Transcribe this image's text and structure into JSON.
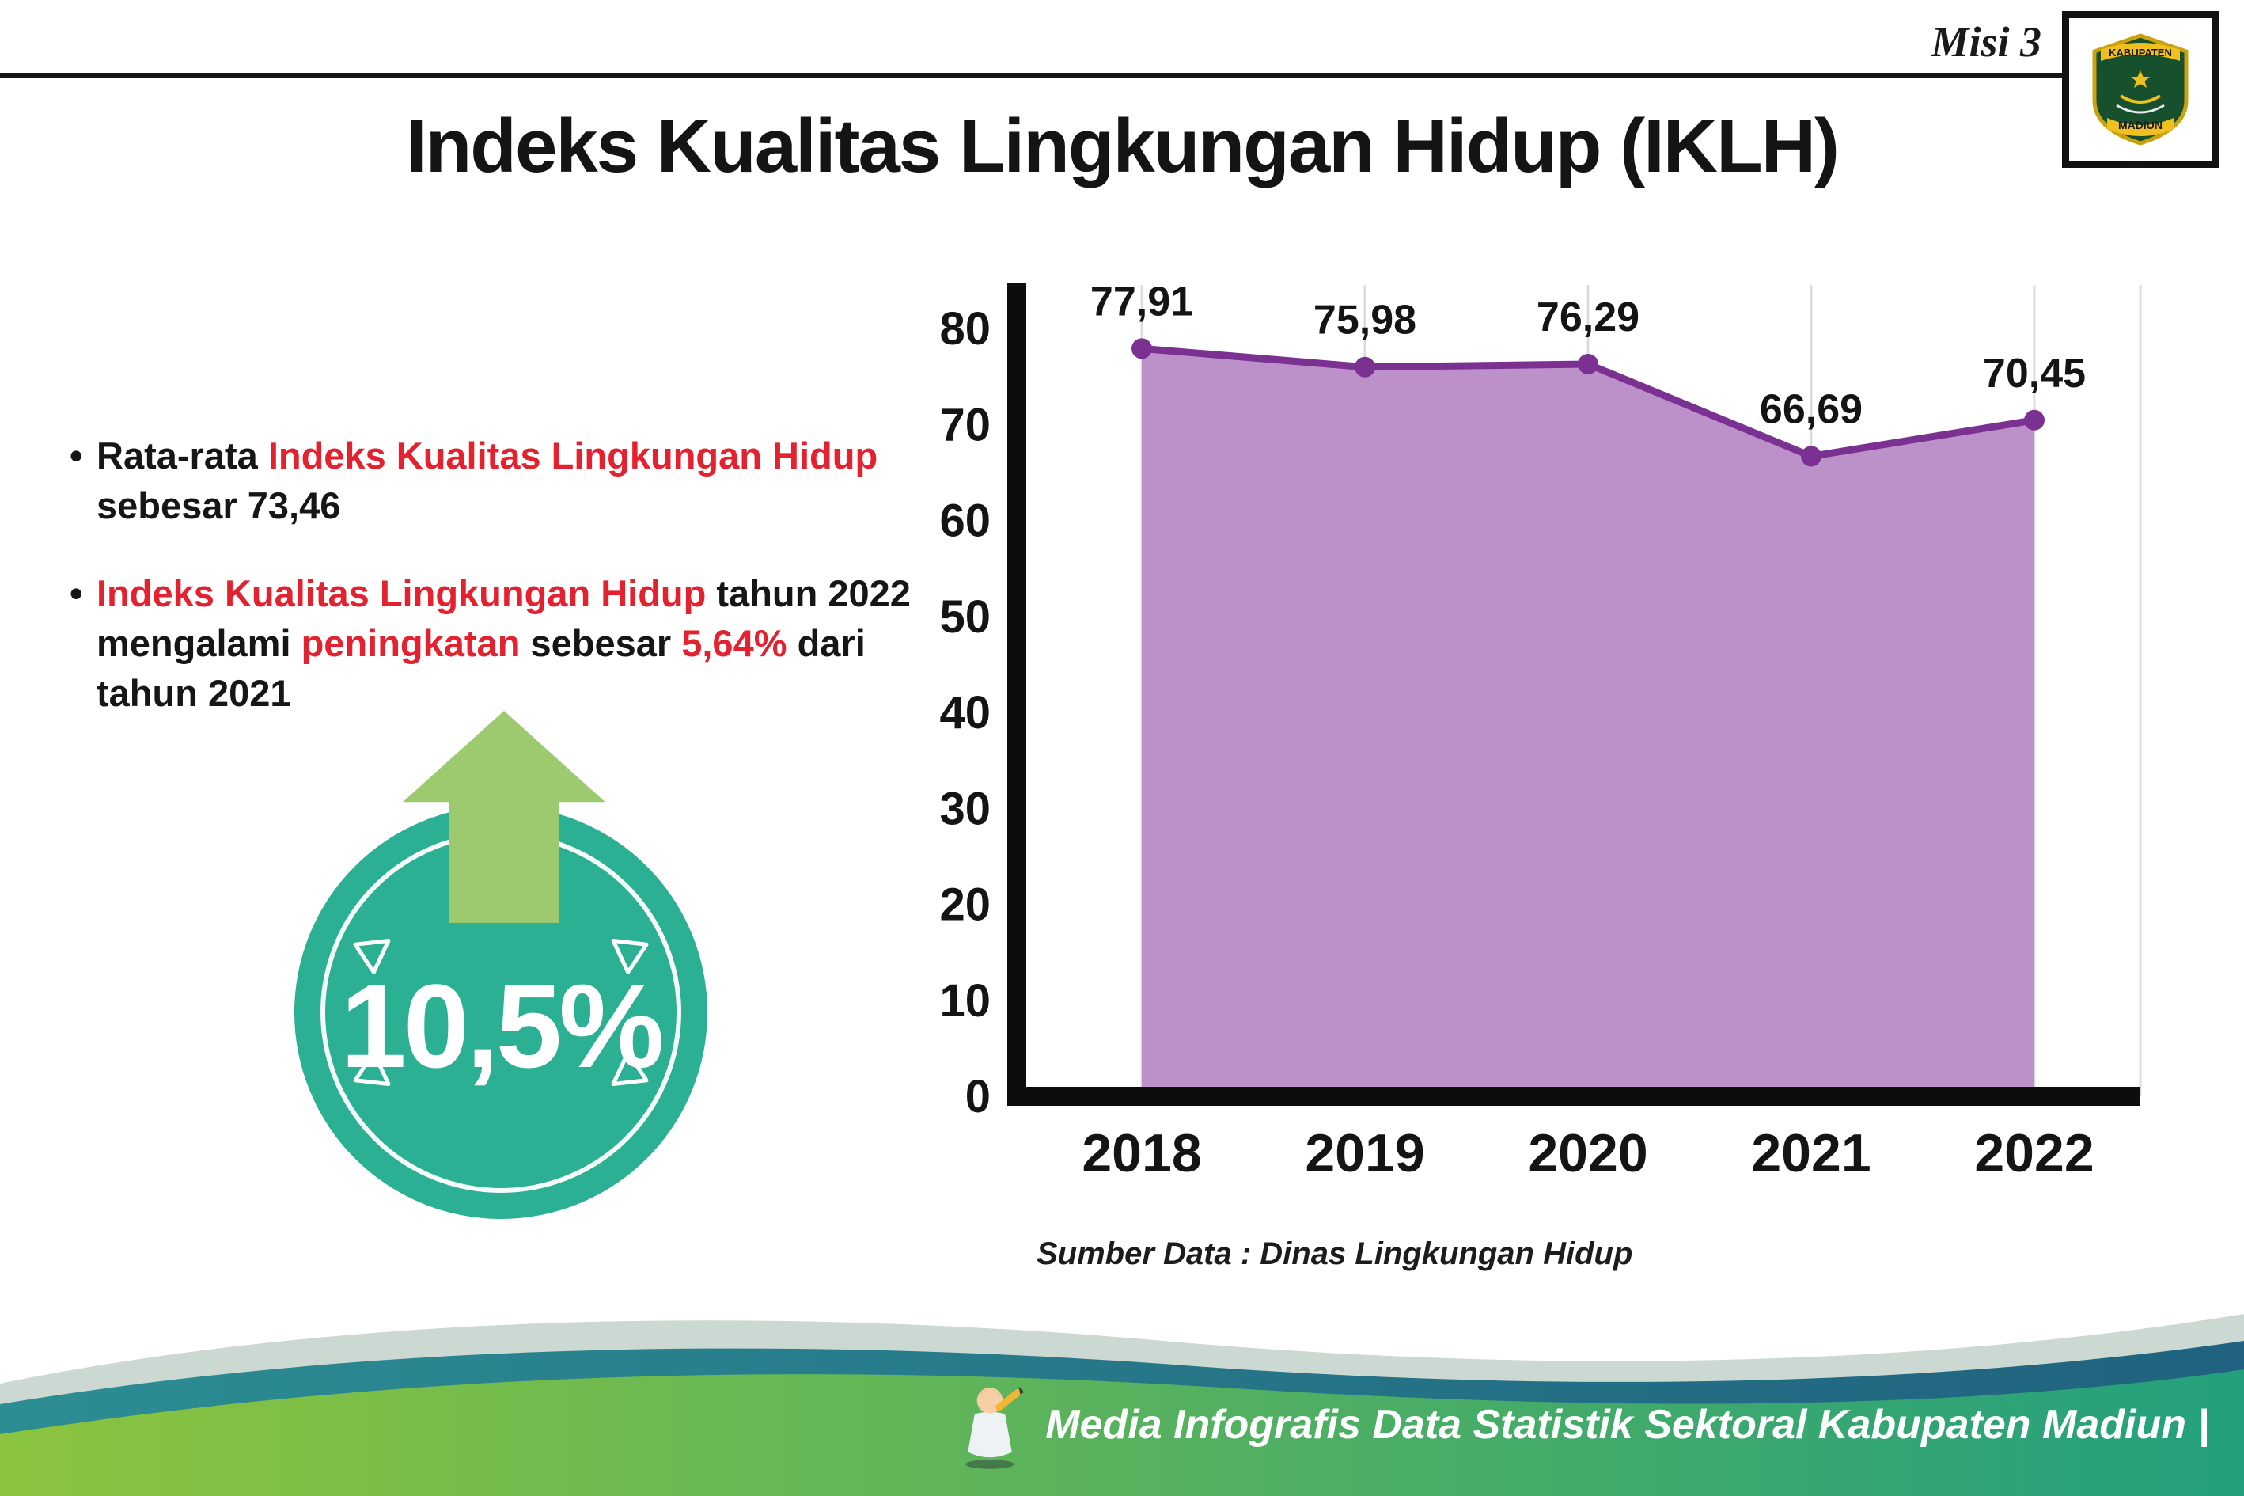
{
  "header": {
    "misi_label": "Misi 3",
    "title": "Indeks Kualitas Lingkungan Hidup (IKLH)"
  },
  "logo": {
    "region_top": "KABUPATEN",
    "region_bottom": "MADIUN"
  },
  "bullets": [
    {
      "marker": "•",
      "segments": [
        {
          "text": "Rata-rata "
        },
        {
          "text": "Indeks Kualitas Lingkungan Hidup"
        },
        {
          "text": " sebesar 73,46"
        }
      ]
    },
    {
      "marker": "•",
      "segments": [
        {
          "text": "Indeks Kualitas Lingkungan Hidup"
        },
        {
          "text": " tahun 2022 mengalami "
        },
        {
          "text": "peningkatan"
        },
        {
          "text": " sebesar "
        },
        {
          "text": "5,64%"
        },
        {
          "text": " dari tahun 2021"
        }
      ]
    }
  ],
  "badge": {
    "value": "10,5%"
  },
  "chart_data": {
    "type": "area",
    "categories": [
      "2018",
      "2019",
      "2020",
      "2021",
      "2022"
    ],
    "values": [
      77.91,
      75.98,
      76.29,
      66.69,
      70.45
    ],
    "value_labels": [
      "77,91",
      "75,98",
      "76,29",
      "66,69",
      "70,45"
    ],
    "ylim": [
      0,
      80
    ],
    "yticks": [
      0,
      10,
      20,
      30,
      40,
      50,
      60,
      70,
      80
    ],
    "title": "",
    "xlabel": "",
    "ylabel": "",
    "legend": "none",
    "grid": "vertical-light",
    "source": "Sumber Data : Dinas Lingkungan Hidup",
    "colors": {
      "fill": "#bc90c8",
      "line": "#7b3191",
      "point": "#7b3191"
    }
  },
  "footer": {
    "caption": "Media Infografis Data Statistik Sektoral Kabupaten Madiun |"
  },
  "colors": {
    "red": "#e4212e",
    "teal": "#2bb093",
    "arrow_green": "#9dca6e",
    "ink": "#161616",
    "wave_light": "#ccd8d2",
    "wave_teal_1": "#2c8d93",
    "wave_teal_2": "#20627f",
    "wave_green_1": "#8cc43e",
    "wave_green_2": "#23a07d"
  }
}
